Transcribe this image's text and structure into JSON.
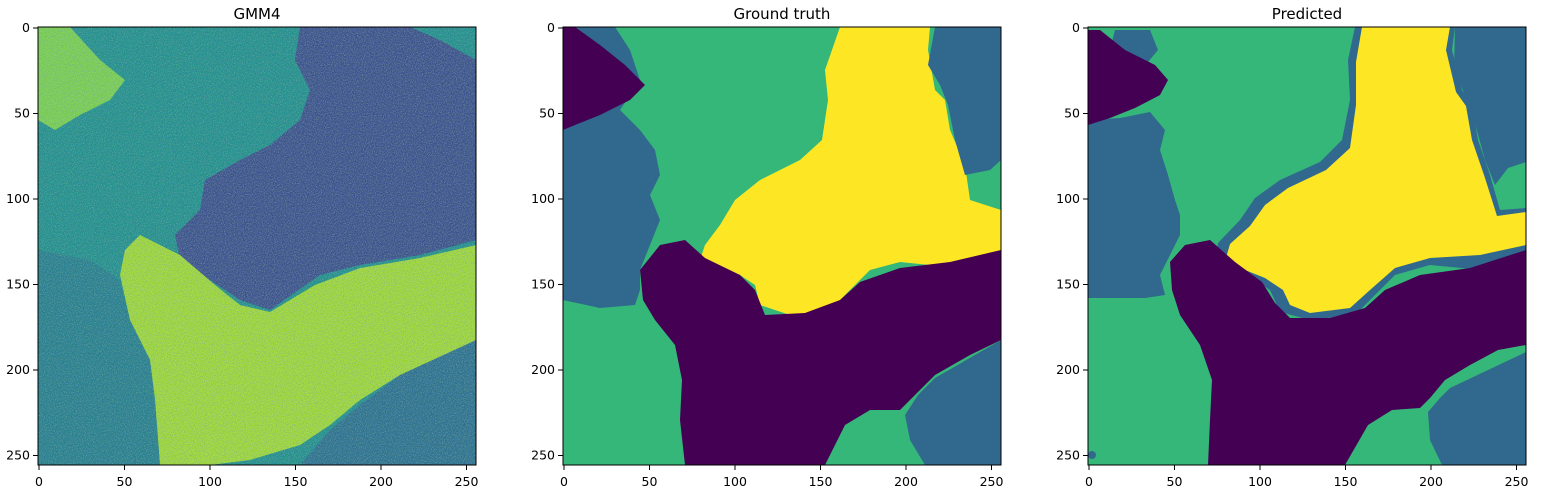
{
  "chart_data": [
    {
      "type": "heatmap",
      "title": "GMM4",
      "xlabel": "",
      "ylabel": "",
      "x_ticks": [
        "0",
        "50",
        "100",
        "150",
        "200",
        "250"
      ],
      "y_ticks": [
        "0",
        "50",
        "100",
        "150",
        "200",
        "250"
      ],
      "xlim": [
        0,
        256
      ],
      "ylim": [
        256,
        0
      ],
      "colormap": "viridis",
      "image_size": [
        256,
        256
      ],
      "description_regions": "noisy intensity image of 4-class segmentation"
    },
    {
      "type": "heatmap",
      "title": "Ground truth",
      "xlabel": "",
      "ylabel": "",
      "x_ticks": [
        "0",
        "50",
        "100",
        "150",
        "200",
        "250"
      ],
      "y_ticks": [
        "0",
        "50",
        "100",
        "150",
        "200",
        "250"
      ],
      "xlim": [
        0,
        256
      ],
      "ylim": [
        256,
        0
      ],
      "colormap": "viridis",
      "image_size": [
        256,
        256
      ],
      "classes": 4
    },
    {
      "type": "heatmap",
      "title": "Predicted",
      "xlabel": "",
      "ylabel": "",
      "x_ticks": [
        "0",
        "50",
        "100",
        "150",
        "200",
        "250"
      ],
      "y_ticks": [
        "0",
        "50",
        "100",
        "150",
        "200",
        "250"
      ],
      "xlim": [
        0,
        256
      ],
      "ylim": [
        256,
        0
      ],
      "colormap": "viridis",
      "image_size": [
        256,
        256
      ],
      "classes": 4
    }
  ],
  "colors": {
    "class0": "#440154",
    "class1": "#31688e",
    "class2": "#35b779",
    "class3": "#fde725",
    "gmm_low": "#3b528b",
    "gmm_mid": "#21918c",
    "gmm_high": "#b5de2b"
  }
}
